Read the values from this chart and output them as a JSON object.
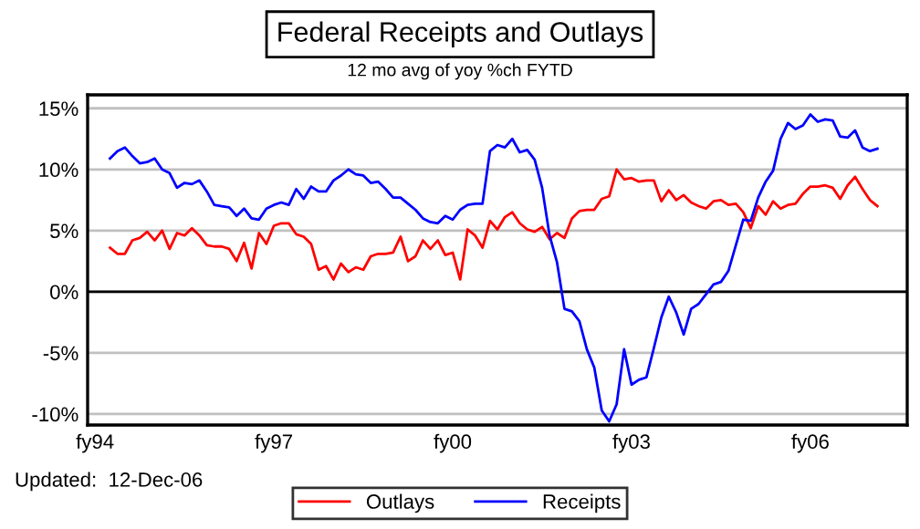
{
  "chart_data": {
    "type": "line",
    "title": "Federal Receipts and Outlays",
    "subtitle": "12 mo avg of yoy %ch FYTD",
    "annotations": [
      "Updated:  12-Dec-06"
    ],
    "categories": [
      "fy94",
      null,
      null,
      null,
      null,
      null,
      null,
      null,
      null,
      null,
      null,
      null,
      null,
      null,
      null,
      null,
      null,
      null,
      null,
      null,
      null,
      null,
      null,
      null,
      "fy97",
      null,
      null,
      null,
      null,
      null,
      null,
      null,
      null,
      null,
      null,
      null,
      null,
      null,
      null,
      null,
      null,
      null,
      null,
      null,
      null,
      null,
      null,
      null,
      "fy00",
      null,
      null,
      null,
      null,
      null,
      null,
      null,
      null,
      null,
      null,
      null,
      null,
      null,
      null,
      null,
      null,
      null,
      null,
      null,
      null,
      null,
      null,
      null,
      "fy03",
      null,
      null,
      null,
      null,
      null,
      null,
      null,
      null,
      null,
      null,
      null,
      null,
      null,
      null,
      null,
      null,
      null,
      null,
      null,
      null,
      null,
      null,
      null,
      "fy06",
      null,
      null,
      null,
      null,
      null,
      null,
      null,
      null,
      null
    ],
    "ylim": [
      -10.9,
      16.1
    ],
    "yticks": [
      {
        "value": -10,
        "label": "-10%"
      },
      {
        "value": -5,
        "label": "-5%"
      },
      {
        "value": 0,
        "label": "0%"
      },
      {
        "value": 5,
        "label": "5%"
      },
      {
        "value": 10,
        "label": "10%"
      },
      {
        "value": 15,
        "label": "15%"
      }
    ],
    "grid": "y",
    "legend": "bottom",
    "marker": "none",
    "ref_lines": [
      {
        "axis": "y",
        "value": 0,
        "color": "#000000"
      }
    ],
    "series": [
      {
        "name": "Outlays",
        "color": "#ff0000",
        "values": [
          null,
          null,
          3.6,
          3.1,
          3.1,
          4.2,
          4.4,
          4.9,
          4.2,
          5.0,
          3.5,
          4.8,
          4.6,
          5.2,
          4.6,
          3.8,
          3.7,
          3.7,
          3.5,
          2.5,
          4.0,
          1.9,
          4.8,
          3.9,
          5.4,
          5.6,
          5.6,
          4.7,
          4.5,
          3.9,
          1.8,
          2.1,
          1.0,
          2.3,
          1.6,
          2.0,
          1.8,
          2.9,
          3.1,
          3.1,
          3.2,
          4.5,
          2.5,
          2.9,
          4.2,
          3.5,
          4.2,
          3.0,
          3.2,
          1.0,
          5.1,
          4.6,
          3.6,
          5.8,
          5.1,
          6.1,
          6.5,
          5.6,
          5.1,
          4.9,
          5.3,
          4.3,
          4.8,
          4.4,
          6.0,
          6.6,
          6.7,
          6.7,
          7.6,
          7.8,
          10.0,
          9.2,
          9.3,
          9.0,
          9.1,
          9.1,
          7.4,
          8.3,
          7.5,
          7.9,
          7.3,
          7.0,
          6.8,
          7.4,
          7.5,
          7.1,
          7.2,
          6.5,
          5.2,
          7.0,
          6.3,
          7.4,
          6.8,
          7.1,
          7.2,
          8.0,
          8.6,
          8.6,
          8.7,
          8.5,
          7.6,
          8.7,
          9.4,
          8.4,
          7.5,
          7.0
        ]
      },
      {
        "name": "Receipts",
        "color": "#0000ff",
        "values": [
          null,
          null,
          10.9,
          11.5,
          11.8,
          11.1,
          10.5,
          10.6,
          10.9,
          10.0,
          9.7,
          8.5,
          8.9,
          8.8,
          9.1,
          8.2,
          7.1,
          7.0,
          6.9,
          6.2,
          6.8,
          6.0,
          5.9,
          6.8,
          7.1,
          7.3,
          7.1,
          8.4,
          7.6,
          8.6,
          8.2,
          8.2,
          9.1,
          9.5,
          10.0,
          9.6,
          9.5,
          8.9,
          9.0,
          8.4,
          7.7,
          7.7,
          7.2,
          6.7,
          6.0,
          5.7,
          5.6,
          6.2,
          5.9,
          6.7,
          7.1,
          7.2,
          7.2,
          11.5,
          12.0,
          11.8,
          12.5,
          11.4,
          11.6,
          10.8,
          8.5,
          4.6,
          2.4,
          -1.4,
          -1.6,
          -2.4,
          -4.7,
          -6.2,
          -9.7,
          -10.6,
          -9.2,
          -4.7,
          -7.6,
          -7.2,
          -7.0,
          -4.6,
          -2.1,
          -0.4,
          -1.7,
          -3.5,
          -1.4,
          -1.0,
          -0.2,
          0.6,
          0.8,
          1.7,
          3.8,
          5.9,
          5.8,
          7.7,
          9.0,
          9.9,
          12.5,
          13.8,
          13.3,
          13.6,
          14.5,
          13.9,
          14.1,
          14.0,
          12.7,
          12.6,
          13.2,
          11.8,
          11.5,
          11.7
        ]
      }
    ]
  }
}
